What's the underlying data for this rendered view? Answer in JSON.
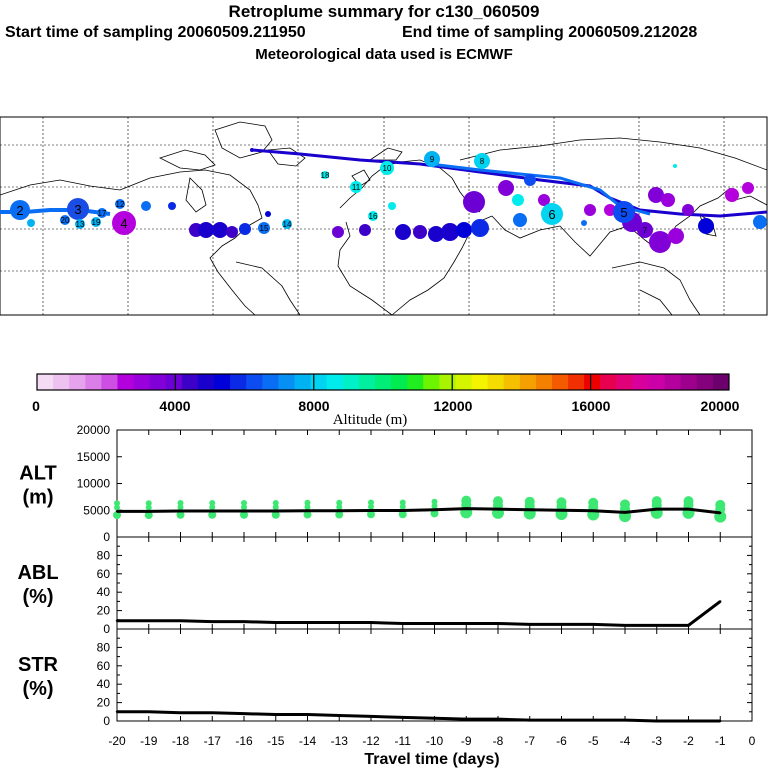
{
  "header": {
    "title": "Retroplume summary for c130_060509",
    "start_label": "Start time of sampling 20060509.211950",
    "end_label": "End time of sampling 20060509.212028",
    "met_label": "Meteorological data used is ECMWF"
  },
  "colorbar": {
    "tick_labels": [
      "0",
      "4000",
      "8000",
      "12000",
      "16000",
      "20000"
    ],
    "title": "Altitude (m)",
    "colors": [
      "#f4dcf4",
      "#eec2f0",
      "#e6a2ec",
      "#dc7ee8",
      "#cc4ee2",
      "#b400dc",
      "#9a00dc",
      "#8200d8",
      "#6c00d4",
      "#3c00c8",
      "#1a00cc",
      "#0000d8",
      "#0a2ae6",
      "#0c4cf0",
      "#0a6ef4",
      "#0690f4",
      "#00b2f2",
      "#00d4f0",
      "#00ecec",
      "#00f0c8",
      "#00f0a0",
      "#00ee78",
      "#00ec50",
      "#20ee20",
      "#6cf400",
      "#a8f400",
      "#d4f400",
      "#f4f400",
      "#f4dc00",
      "#f4c000",
      "#f4a000",
      "#f48000",
      "#f45a00",
      "#f03000",
      "#ec0000",
      "#e80050",
      "#e00078",
      "#d8009c",
      "#cc00a8",
      "#b4009c",
      "#9c008c",
      "#84007c",
      "#6c006c"
    ]
  },
  "map": {
    "trajectory_labels": [
      "2",
      "3",
      "4",
      "5",
      "6",
      "7",
      "8",
      "9",
      "10",
      "11",
      "12",
      "13",
      "14",
      "15",
      "16",
      "17",
      "18",
      "19",
      "20"
    ]
  },
  "chart_data": [
    {
      "type": "line",
      "panel": "ALT",
      "ylabel": [
        "ALT",
        "(m)"
      ],
      "ylim": [
        0,
        20000
      ],
      "yticks": [
        "20000",
        "15000",
        "10000",
        "5000",
        "0"
      ],
      "x": [
        -20,
        -19,
        -18,
        -17,
        -16,
        -15,
        -14,
        -13,
        -12,
        -11,
        -10,
        -9,
        -8,
        -7,
        -6,
        -5,
        -4,
        -3,
        -2,
        -1
      ],
      "values": [
        4800,
        4800,
        4850,
        4850,
        4850,
        4850,
        4900,
        4900,
        4950,
        4950,
        5100,
        5300,
        5200,
        5100,
        5000,
        4900,
        4600,
        5200,
        5200,
        4500
      ]
    },
    {
      "type": "line",
      "panel": "ABL",
      "ylabel": [
        "ABL",
        "(%)"
      ],
      "ylim": [
        0,
        100
      ],
      "yticks": [
        "80",
        "60",
        "40",
        "20",
        "0"
      ],
      "x": [
        -20,
        -19,
        -18,
        -17,
        -16,
        -15,
        -14,
        -13,
        -12,
        -11,
        -10,
        -9,
        -8,
        -7,
        -6,
        -5,
        -4,
        -3,
        -2,
        -1
      ],
      "values": [
        9,
        9,
        9,
        8,
        8,
        7,
        7,
        7,
        7,
        6,
        6,
        6,
        6,
        5,
        5,
        5,
        4,
        4,
        4,
        30
      ]
    },
    {
      "type": "line",
      "panel": "STR",
      "ylabel": [
        "STR",
        "(%)"
      ],
      "ylim": [
        0,
        100
      ],
      "yticks": [
        "80",
        "60",
        "40",
        "20",
        "0"
      ],
      "x": [
        -20,
        -19,
        -18,
        -17,
        -16,
        -15,
        -14,
        -13,
        -12,
        -11,
        -10,
        -9,
        -8,
        -7,
        -6,
        -5,
        -4,
        -3,
        -2,
        -1
      ],
      "values": [
        10,
        10,
        9,
        9,
        8,
        7,
        7,
        6,
        5,
        4,
        3,
        2,
        2,
        1,
        1,
        1,
        1,
        0,
        0,
        0
      ]
    }
  ],
  "xaxis": {
    "ticks": [
      "-20",
      "-19",
      "-18",
      "-17",
      "-16",
      "-15",
      "-14",
      "-13",
      "-12",
      "-11",
      "-10",
      "-9",
      "-8",
      "-7",
      "-6",
      "-5",
      "-4",
      "-3",
      "-2",
      "-1",
      "0"
    ],
    "label": "Travel time (days)"
  }
}
